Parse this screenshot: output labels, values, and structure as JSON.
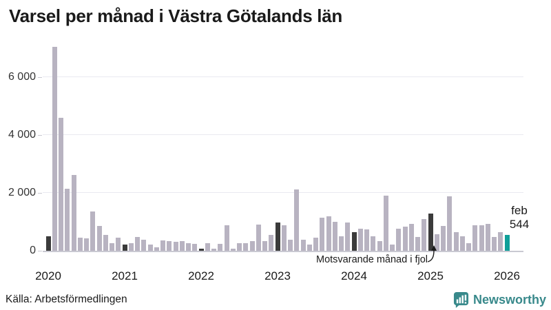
{
  "title": "Varsel per månad i Västra Götalands län",
  "source": "Källa: Arbetsförmedlingen",
  "brand": {
    "name": "Newsworthy",
    "color": "#38898b"
  },
  "annotation": {
    "text": "Motsvarande månad i fjol"
  },
  "highlight_label": {
    "month": "feb",
    "value": "544"
  },
  "colors": {
    "bar_default": "#b8b3c1",
    "bar_same_month_prev_years": "#3b3b3b",
    "bar_current": "#0f9f99",
    "gridline": "#e9e9f0",
    "axis_line": "#c9c9d2"
  },
  "chart_data": {
    "type": "bar",
    "title": "Varsel per månad i Västra Götalands län",
    "xlabel": "",
    "ylabel": "",
    "ylim": [
      0,
      7300
    ],
    "grid": "horizontal",
    "yticks": [
      0,
      2000,
      4000,
      6000
    ],
    "ytick_labels": [
      "0",
      "2 000",
      "4 000",
      "6 000"
    ],
    "x_start_month": "feb 2020",
    "x_end_month": "feb 2026",
    "year_labels": [
      "2020",
      "2021",
      "2022",
      "2023",
      "2024",
      "2025",
      "2026"
    ],
    "year_label_indices": [
      0,
      12,
      24,
      36,
      48,
      60,
      72
    ],
    "dark_indices": [
      0,
      12,
      24,
      36,
      48,
      60
    ],
    "current_index": 72,
    "current_value_label": "feb 544",
    "values": [
      500,
      7050,
      4600,
      2150,
      2620,
      450,
      430,
      1360,
      860,
      550,
      260,
      450,
      210,
      270,
      470,
      390,
      210,
      110,
      365,
      325,
      310,
      325,
      270,
      245,
      60,
      250,
      65,
      230,
      880,
      65,
      250,
      250,
      325,
      905,
      325,
      540,
      970,
      880,
      390,
      2130,
      375,
      210,
      445,
      1140,
      1180,
      1000,
      510,
      970,
      650,
      770,
      730,
      510,
      330,
      1900,
      225,
      770,
      840,
      930,
      470,
      1100,
      1280,
      560,
      860,
      1890,
      650,
      490,
      250,
      880,
      870,
      940,
      470,
      640,
      544
    ]
  }
}
